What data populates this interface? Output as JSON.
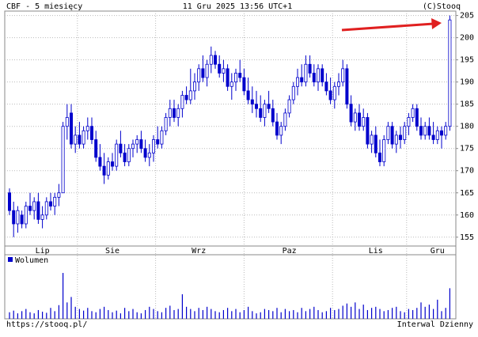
{
  "chart_data": {
    "type": "candlestick",
    "title": "CBF - 5 miesięcy",
    "subtitle": "11 Gru 2025 13:56 UTC+1",
    "source": "(C)Stooq",
    "url": "https://stooq.pl/",
    "interval": "Interwal Dzienny",
    "volume_label": "Wolumen",
    "ylim": [
      153,
      206
    ],
    "yticks": [
      155,
      160,
      165,
      170,
      175,
      180,
      185,
      190,
      195,
      200,
      205
    ],
    "xticks": [
      {
        "value": 8,
        "label": "Lip"
      },
      {
        "value": 25,
        "label": "Sie"
      },
      {
        "value": 46,
        "label": "Wrz"
      },
      {
        "value": 68,
        "label": "Paz"
      },
      {
        "value": 89,
        "label": "Lis"
      },
      {
        "value": 104,
        "label": "Gru"
      }
    ],
    "grid": true,
    "up_color": "#ffffff",
    "down_color": "#0000cc",
    "line_color": "#0000cc",
    "volume_ylim": [
      0,
      100
    ],
    "ohlc": [
      [
        165,
        166,
        160,
        161
      ],
      [
        161,
        163,
        155,
        158
      ],
      [
        158,
        162,
        156,
        161
      ],
      [
        160,
        161,
        157,
        158
      ],
      [
        158,
        163,
        157,
        162
      ],
      [
        162,
        165,
        160,
        161
      ],
      [
        161,
        164,
        159,
        163
      ],
      [
        163,
        165,
        158,
        159
      ],
      [
        159,
        162,
        157,
        160
      ],
      [
        160,
        164,
        159,
        163
      ],
      [
        163,
        165,
        161,
        162
      ],
      [
        162,
        165,
        160,
        164
      ],
      [
        164,
        167,
        162,
        165
      ],
      [
        165,
        181,
        165,
        180
      ],
      [
        180,
        185,
        177,
        182
      ],
      [
        183,
        185,
        175,
        176
      ],
      [
        176,
        180,
        174,
        178
      ],
      [
        178,
        181,
        175,
        176
      ],
      [
        176,
        180,
        175,
        179
      ],
      [
        179,
        182,
        177,
        180
      ],
      [
        180,
        182,
        176,
        177
      ],
      [
        177,
        179,
        172,
        173
      ],
      [
        173,
        176,
        170,
        171
      ],
      [
        171,
        174,
        167,
        169
      ],
      [
        169,
        173,
        168,
        172
      ],
      [
        172,
        174,
        170,
        171
      ],
      [
        171,
        177,
        170,
        176
      ],
      [
        176,
        179,
        173,
        174
      ],
      [
        174,
        176,
        171,
        172
      ],
      [
        172,
        176,
        171,
        175
      ],
      [
        175,
        177,
        173,
        176
      ],
      [
        176,
        178,
        174,
        177
      ],
      [
        177,
        179,
        174,
        175
      ],
      [
        175,
        177,
        172,
        173
      ],
      [
        173,
        176,
        171,
        174
      ],
      [
        174,
        178,
        172,
        177
      ],
      [
        177,
        180,
        175,
        176
      ],
      [
        176,
        180,
        175,
        179
      ],
      [
        179,
        183,
        178,
        182
      ],
      [
        182,
        186,
        180,
        184
      ],
      [
        184,
        186,
        181,
        182
      ],
      [
        182,
        185,
        180,
        184
      ],
      [
        184,
        188,
        182,
        187
      ],
      [
        187,
        189,
        185,
        186
      ],
      [
        186,
        193,
        185,
        188
      ],
      [
        188,
        192,
        186,
        190
      ],
      [
        190,
        194,
        188,
        193
      ],
      [
        193,
        196,
        190,
        191
      ],
      [
        191,
        195,
        189,
        194
      ],
      [
        194,
        198,
        192,
        196
      ],
      [
        196,
        197,
        193,
        194
      ],
      [
        194,
        196,
        191,
        192
      ],
      [
        192,
        195,
        190,
        193
      ],
      [
        193,
        194,
        188,
        189
      ],
      [
        189,
        192,
        186,
        190
      ],
      [
        190,
        193,
        188,
        192
      ],
      [
        192,
        195,
        190,
        191
      ],
      [
        191,
        193,
        187,
        188
      ],
      [
        188,
        191,
        185,
        186
      ],
      [
        186,
        189,
        183,
        185
      ],
      [
        185,
        188,
        182,
        184
      ],
      [
        184,
        187,
        181,
        182
      ],
      [
        182,
        186,
        180,
        185
      ],
      [
        185,
        188,
        183,
        184
      ],
      [
        184,
        186,
        180,
        181
      ],
      [
        181,
        183,
        177,
        178
      ],
      [
        178,
        181,
        176,
        180
      ],
      [
        180,
        184,
        179,
        183
      ],
      [
        183,
        187,
        182,
        186
      ],
      [
        186,
        190,
        185,
        189
      ],
      [
        189,
        193,
        187,
        191
      ],
      [
        191,
        194,
        189,
        190
      ],
      [
        190,
        196,
        189,
        194
      ],
      [
        194,
        196,
        191,
        192
      ],
      [
        192,
        194,
        189,
        190
      ],
      [
        190,
        194,
        188,
        193
      ],
      [
        193,
        194,
        189,
        190
      ],
      [
        190,
        192,
        187,
        188
      ],
      [
        188,
        191,
        185,
        186
      ],
      [
        186,
        190,
        184,
        189
      ],
      [
        189,
        192,
        187,
        190
      ],
      [
        190,
        195,
        189,
        193
      ],
      [
        193,
        194,
        184,
        185
      ],
      [
        185,
        187,
        180,
        181
      ],
      [
        181,
        184,
        179,
        183
      ],
      [
        183,
        185,
        179,
        180
      ],
      [
        180,
        184,
        179,
        182
      ],
      [
        182,
        183,
        175,
        176
      ],
      [
        176,
        179,
        174,
        178
      ],
      [
        178,
        180,
        173,
        174
      ],
      [
        174,
        177,
        171,
        172
      ],
      [
        172,
        178,
        171,
        177
      ],
      [
        177,
        181,
        176,
        180
      ],
      [
        180,
        181,
        175,
        176
      ],
      [
        176,
        179,
        174,
        178
      ],
      [
        178,
        180,
        175,
        177
      ],
      [
        177,
        181,
        176,
        180
      ],
      [
        180,
        183,
        178,
        182
      ],
      [
        182,
        185,
        181,
        184
      ],
      [
        184,
        185,
        179,
        180
      ],
      [
        180,
        182,
        177,
        178
      ],
      [
        178,
        181,
        177,
        180
      ],
      [
        180,
        182,
        177,
        178
      ],
      [
        178,
        181,
        176,
        177
      ],
      [
        177,
        180,
        176,
        179
      ],
      [
        179,
        180,
        175,
        178
      ],
      [
        178,
        181,
        177,
        180
      ],
      [
        180,
        205,
        179,
        204
      ]
    ],
    "volume": [
      12,
      15,
      10,
      14,
      18,
      12,
      10,
      16,
      13,
      11,
      20,
      14,
      25,
      84,
      30,
      40,
      22,
      18,
      15,
      20,
      14,
      12,
      18,
      22,
      16,
      12,
      15,
      10,
      20,
      14,
      18,
      12,
      10,
      16,
      22,
      18,
      14,
      12,
      20,
      24,
      16,
      18,
      45,
      22,
      18,
      14,
      20,
      16,
      22,
      18,
      14,
      12,
      16,
      20,
      14,
      18,
      12,
      16,
      22,
      14,
      10,
      12,
      18,
      16,
      14,
      20,
      12,
      18,
      14,
      16,
      12,
      20,
      14,
      18,
      22,
      16,
      12,
      14,
      20,
      16,
      18,
      24,
      28,
      22,
      30,
      18,
      26,
      16,
      20,
      22,
      18,
      14,
      16,
      20,
      22,
      14,
      12,
      18,
      16,
      20,
      30,
      22,
      26,
      18,
      35,
      14,
      20,
      56
    ]
  }
}
